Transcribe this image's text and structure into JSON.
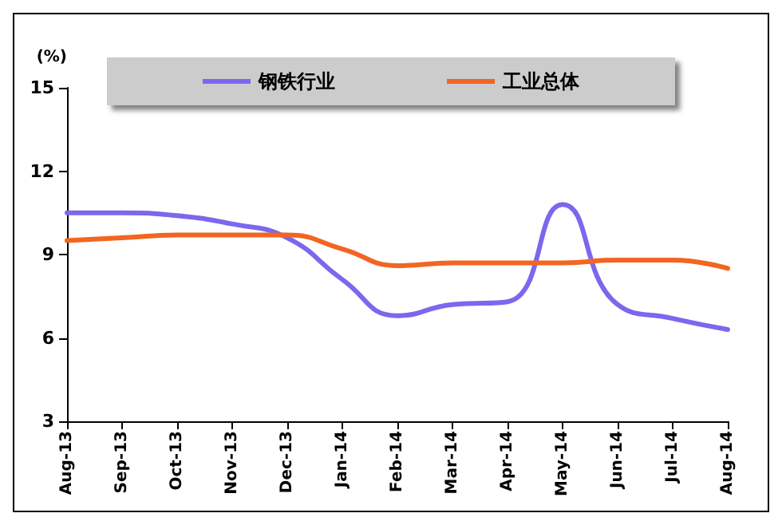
{
  "chart_data": {
    "type": "line",
    "ylabel": "(%)",
    "categories": [
      "Aug-13",
      "Sep-13",
      "Oct-13",
      "Nov-13",
      "Dec-13",
      "Jan-14",
      "Feb-14",
      "Mar-14",
      "Apr-14",
      "May-14",
      "Jun-14",
      "Jul-14",
      "Aug-14"
    ],
    "series": [
      {
        "name": "钢铁行业",
        "color": "#7b68ee",
        "values": [
          10.5,
          10.5,
          10.4,
          10.1,
          9.6,
          8.1,
          6.8,
          7.2,
          7.3,
          10.8,
          7.2,
          6.7,
          6.3
        ]
      },
      {
        "name": "工业总体",
        "color": "#f26522",
        "values": [
          9.5,
          9.6,
          9.7,
          9.7,
          9.7,
          9.2,
          8.6,
          8.7,
          8.7,
          8.7,
          8.8,
          8.8,
          8.5
        ]
      }
    ],
    "ylim": [
      3,
      15
    ],
    "yticks": [
      3,
      6,
      9,
      12,
      15
    ],
    "grid": false,
    "legend": "top",
    "marker": "none",
    "line_style": "solid"
  }
}
